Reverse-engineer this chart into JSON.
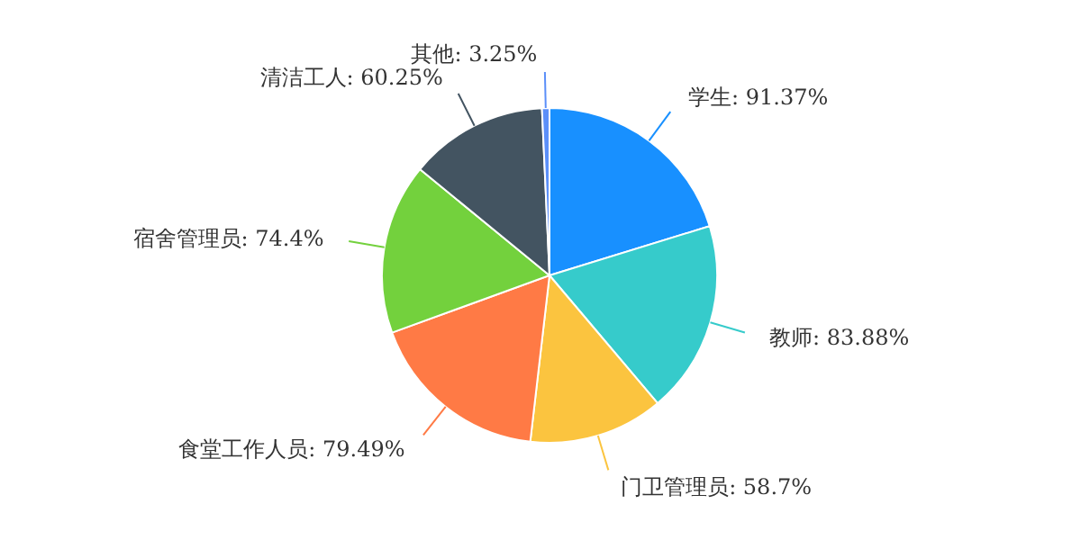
{
  "chart_data": {
    "type": "pie",
    "categories": [
      "学生",
      "教师",
      "门卫管理员",
      "食堂工作人员",
      "宿舍管理员",
      "清洁工人",
      "其他"
    ],
    "values": [
      91.37,
      83.88,
      58.7,
      79.49,
      74.4,
      60.25,
      3.25
    ],
    "value_labels": [
      "91.37%",
      "83.88%",
      "58.7%",
      "79.49%",
      "74.4%",
      "60.25%",
      "3.25%"
    ],
    "colors": [
      "#1890ff",
      "#36cbcb",
      "#fbc43f",
      "#ff7a45",
      "#73d13d",
      "#435461",
      "#5b8ff9"
    ],
    "legend": false
  }
}
